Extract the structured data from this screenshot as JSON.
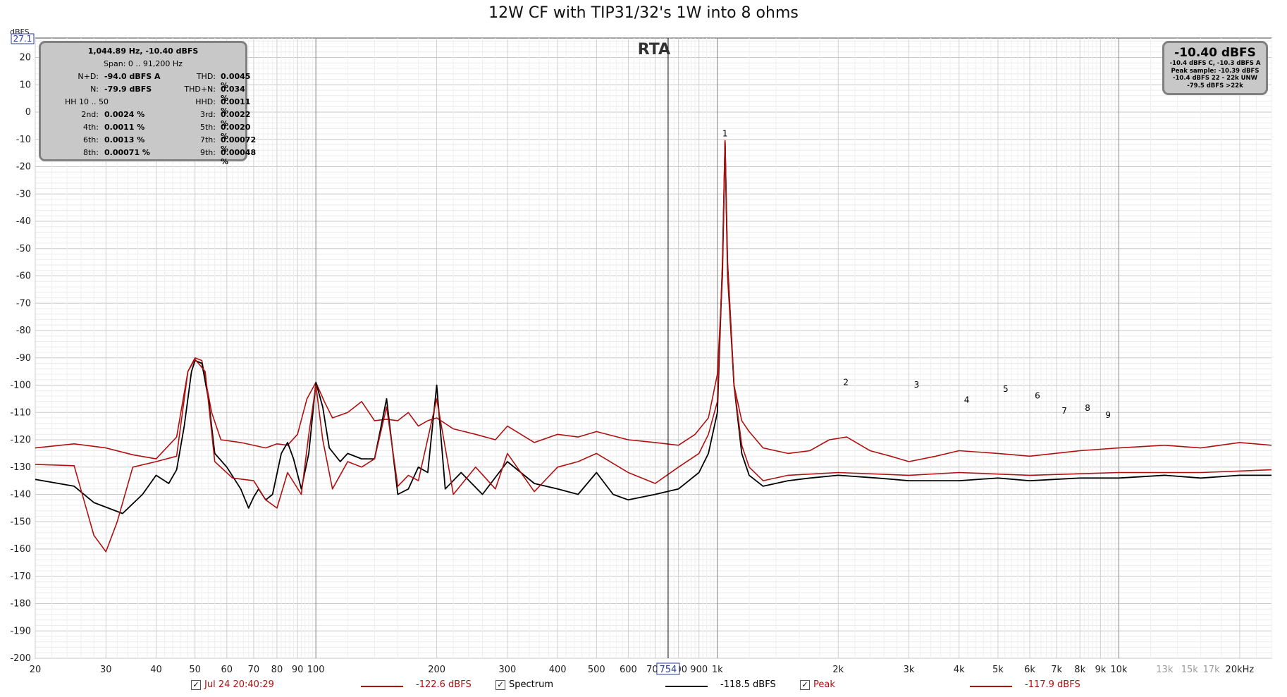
{
  "title": "12W CF with TIP31/32's 1W into 8 ohms",
  "colors": {
    "series1": "#b01010",
    "series2": "#000000",
    "series3": "#b01010",
    "grid": "#d4d4d4",
    "panel": "#c8c8c8"
  },
  "chart_data": {
    "type": "line",
    "title": "12W CF with TIP31/32's 1W into 8 ohms",
    "ylabel": "dBFS",
    "xlabel": "",
    "x_scale": "log",
    "xlim": [
      20,
      24000
    ],
    "ylim": [
      -200,
      27.1
    ],
    "grid": true,
    "overlay_label": "RTA",
    "y_top_readout": "27.1",
    "cursor_readout": "754",
    "y_ticks": [
      "20",
      "10",
      "0",
      "-10",
      "-20",
      "-30",
      "-40",
      "-50",
      "-60",
      "-70",
      "-80",
      "-90",
      "-100",
      "-110",
      "-120",
      "-130",
      "-140",
      "-150",
      "-160",
      "-170",
      "-180",
      "-190",
      "-200"
    ],
    "x_ticks": [
      {
        "v": 20,
        "t": "20"
      },
      {
        "v": 30,
        "t": "30"
      },
      {
        "v": 40,
        "t": "40"
      },
      {
        "v": 50,
        "t": "50"
      },
      {
        "v": 60,
        "t": "60"
      },
      {
        "v": 70,
        "t": "70"
      },
      {
        "v": 80,
        "t": "80"
      },
      {
        "v": 90,
        "t": "90"
      },
      {
        "v": 100,
        "t": "100"
      },
      {
        "v": 200,
        "t": "200"
      },
      {
        "v": 300,
        "t": "300"
      },
      {
        "v": 400,
        "t": "400"
      },
      {
        "v": 500,
        "t": "500"
      },
      {
        "v": 600,
        "t": "600"
      },
      {
        "v": 700,
        "t": "700"
      },
      {
        "v": 800,
        "t": "800"
      },
      {
        "v": 900,
        "t": "900"
      },
      {
        "v": 1000,
        "t": "1k"
      },
      {
        "v": 2000,
        "t": "2k"
      },
      {
        "v": 3000,
        "t": "3k"
      },
      {
        "v": 4000,
        "t": "4k"
      },
      {
        "v": 5000,
        "t": "5k"
      },
      {
        "v": 6000,
        "t": "6k"
      },
      {
        "v": 7000,
        "t": "7k"
      },
      {
        "v": 8000,
        "t": "8k"
      },
      {
        "v": 9000,
        "t": "9k"
      },
      {
        "v": 10000,
        "t": "10k"
      },
      {
        "v": 13000,
        "t": "13k",
        "light": true
      },
      {
        "v": 15000,
        "t": "15k",
        "light": true
      },
      {
        "v": 17000,
        "t": "17k",
        "light": true
      },
      {
        "v": 20000,
        "t": "20kHz"
      }
    ],
    "harmonic_markers": [
      {
        "label": "1",
        "x": 1045,
        "y": -10.4
      },
      {
        "label": "2",
        "x": 2090,
        "y": -101.5
      },
      {
        "label": "3",
        "x": 3135,
        "y": -102.5
      },
      {
        "label": "4",
        "x": 4180,
        "y": -108
      },
      {
        "label": "5",
        "x": 5225,
        "y": -104
      },
      {
        "label": "6",
        "x": 6270,
        "y": -106.5
      },
      {
        "label": "7",
        "x": 7315,
        "y": -112
      },
      {
        "label": "8",
        "x": 8360,
        "y": -111
      },
      {
        "label": "9",
        "x": 9405,
        "y": -113.5
      }
    ],
    "series": [
      {
        "name": "Jul 24 20:40:29",
        "color": "#b01010",
        "points": [
          [
            20,
            -123
          ],
          [
            25,
            -121.5
          ],
          [
            30,
            -123
          ],
          [
            35,
            -125.5
          ],
          [
            40,
            -127
          ],
          [
            45,
            -119
          ],
          [
            48,
            -95
          ],
          [
            50,
            -90
          ],
          [
            52,
            -91
          ],
          [
            55,
            -110
          ],
          [
            58,
            -120
          ],
          [
            65,
            -121
          ],
          [
            75,
            -123
          ],
          [
            80,
            -121.5
          ],
          [
            85,
            -122
          ],
          [
            90,
            -118
          ],
          [
            95,
            -105
          ],
          [
            100,
            -99
          ],
          [
            105,
            -106
          ],
          [
            110,
            -112
          ],
          [
            120,
            -110
          ],
          [
            130,
            -106
          ],
          [
            140,
            -113
          ],
          [
            150,
            -112.5
          ],
          [
            160,
            -113
          ],
          [
            170,
            -110
          ],
          [
            180,
            -115
          ],
          [
            190,
            -113
          ],
          [
            200,
            -112
          ],
          [
            220,
            -116
          ],
          [
            250,
            -118
          ],
          [
            280,
            -120
          ],
          [
            300,
            -115
          ],
          [
            350,
            -121
          ],
          [
            400,
            -118
          ],
          [
            450,
            -119
          ],
          [
            500,
            -117
          ],
          [
            600,
            -120
          ],
          [
            700,
            -121
          ],
          [
            800,
            -122
          ],
          [
            880,
            -118
          ],
          [
            950,
            -112
          ],
          [
            1000,
            -96
          ],
          [
            1030,
            -60
          ],
          [
            1045,
            -10.4
          ],
          [
            1060,
            -60
          ],
          [
            1100,
            -100
          ],
          [
            1150,
            -113
          ],
          [
            1200,
            -117
          ],
          [
            1300,
            -123
          ],
          [
            1500,
            -125
          ],
          [
            1700,
            -124
          ],
          [
            1900,
            -120
          ],
          [
            2100,
            -119
          ],
          [
            2400,
            -124
          ],
          [
            2700,
            -126
          ],
          [
            3000,
            -128
          ],
          [
            3500,
            -126
          ],
          [
            4000,
            -124
          ],
          [
            5000,
            -125
          ],
          [
            6000,
            -126
          ],
          [
            8000,
            -124
          ],
          [
            10000,
            -123
          ],
          [
            13000,
            -122
          ],
          [
            16000,
            -123
          ],
          [
            20000,
            -121
          ],
          [
            24000,
            -122
          ]
        ]
      },
      {
        "name": "Spectrum",
        "color": "#000000",
        "points": [
          [
            20,
            -134.5
          ],
          [
            25,
            -137
          ],
          [
            28,
            -143
          ],
          [
            33,
            -147
          ],
          [
            37,
            -140
          ],
          [
            40,
            -133
          ],
          [
            43,
            -136
          ],
          [
            45,
            -131
          ],
          [
            47,
            -115
          ],
          [
            49,
            -95
          ],
          [
            50,
            -91
          ],
          [
            52,
            -92
          ],
          [
            54,
            -105
          ],
          [
            56,
            -125
          ],
          [
            60,
            -130
          ],
          [
            65,
            -138
          ],
          [
            68,
            -145
          ],
          [
            70,
            -141
          ],
          [
            72,
            -138
          ],
          [
            75,
            -142
          ],
          [
            78,
            -140
          ],
          [
            82,
            -125
          ],
          [
            85,
            -121
          ],
          [
            88,
            -127
          ],
          [
            92,
            -138
          ],
          [
            96,
            -125
          ],
          [
            100,
            -99
          ],
          [
            104,
            -108
          ],
          [
            108,
            -123
          ],
          [
            115,
            -128
          ],
          [
            120,
            -125
          ],
          [
            130,
            -127
          ],
          [
            140,
            -127
          ],
          [
            150,
            -105
          ],
          [
            160,
            -140
          ],
          [
            170,
            -138
          ],
          [
            180,
            -130
          ],
          [
            190,
            -132
          ],
          [
            200,
            -100
          ],
          [
            210,
            -138
          ],
          [
            230,
            -132
          ],
          [
            260,
            -140
          ],
          [
            300,
            -128
          ],
          [
            350,
            -136
          ],
          [
            400,
            -138
          ],
          [
            450,
            -140
          ],
          [
            500,
            -132
          ],
          [
            550,
            -140
          ],
          [
            600,
            -142
          ],
          [
            700,
            -140
          ],
          [
            800,
            -138
          ],
          [
            900,
            -132
          ],
          [
            950,
            -125
          ],
          [
            1000,
            -110
          ],
          [
            1030,
            -55
          ],
          [
            1045,
            -11
          ],
          [
            1060,
            -55
          ],
          [
            1100,
            -100
          ],
          [
            1150,
            -125
          ],
          [
            1200,
            -133
          ],
          [
            1300,
            -137
          ],
          [
            1500,
            -135
          ],
          [
            1700,
            -134
          ],
          [
            2000,
            -133
          ],
          [
            2500,
            -134
          ],
          [
            3000,
            -135
          ],
          [
            4000,
            -135
          ],
          [
            5000,
            -134
          ],
          [
            6000,
            -135
          ],
          [
            8000,
            -134
          ],
          [
            10000,
            -134
          ],
          [
            13000,
            -133
          ],
          [
            16000,
            -134
          ],
          [
            20000,
            -133
          ],
          [
            24000,
            -133
          ]
        ]
      },
      {
        "name": "Peak",
        "color": "#b01010",
        "points": [
          [
            20,
            -129
          ],
          [
            25,
            -129.5
          ],
          [
            28,
            -155
          ],
          [
            30,
            -161
          ],
          [
            32,
            -150
          ],
          [
            35,
            -130
          ],
          [
            40,
            -128
          ],
          [
            45,
            -126
          ],
          [
            48,
            -95
          ],
          [
            50,
            -90.5
          ],
          [
            53,
            -95
          ],
          [
            56,
            -128
          ],
          [
            62,
            -134
          ],
          [
            70,
            -135
          ],
          [
            75,
            -142
          ],
          [
            80,
            -145
          ],
          [
            85,
            -132
          ],
          [
            92,
            -140
          ],
          [
            96,
            -118
          ],
          [
            100,
            -100
          ],
          [
            104,
            -120
          ],
          [
            110,
            -138
          ],
          [
            120,
            -128
          ],
          [
            130,
            -130
          ],
          [
            140,
            -127
          ],
          [
            150,
            -108
          ],
          [
            160,
            -137
          ],
          [
            170,
            -133
          ],
          [
            180,
            -135
          ],
          [
            200,
            -105
          ],
          [
            220,
            -140
          ],
          [
            250,
            -130
          ],
          [
            280,
            -138
          ],
          [
            300,
            -125
          ],
          [
            350,
            -139
          ],
          [
            400,
            -130
          ],
          [
            450,
            -128
          ],
          [
            500,
            -125
          ],
          [
            600,
            -132
          ],
          [
            700,
            -136
          ],
          [
            800,
            -130
          ],
          [
            900,
            -125
          ],
          [
            950,
            -118
          ],
          [
            1000,
            -106
          ],
          [
            1030,
            -55
          ],
          [
            1045,
            -10.5
          ],
          [
            1060,
            -55
          ],
          [
            1100,
            -100
          ],
          [
            1150,
            -122
          ],
          [
            1200,
            -130
          ],
          [
            1300,
            -135
          ],
          [
            1500,
            -133
          ],
          [
            2000,
            -132
          ],
          [
            3000,
            -133
          ],
          [
            4000,
            -132
          ],
          [
            6000,
            -133
          ],
          [
            10000,
            -132
          ],
          [
            16000,
            -132
          ],
          [
            24000,
            -131
          ]
        ]
      }
    ]
  },
  "stats_panel": {
    "header1": "1,044.89 Hz, -10.40 dBFS",
    "header2": "Span: 0 .. 91,200 Hz",
    "rows": [
      {
        "l1": "N+D:",
        "v1": "-94.0 dBFS A",
        "l2": "THD:",
        "v2": "0.0045 %"
      },
      {
        "l1": "N:",
        "v1": "-79.9 dBFS",
        "l2": "THD+N:",
        "v2": "0.034 %"
      },
      {
        "l1": "",
        "v1": "",
        "l2": "HHD:",
        "v2": "0.0011 %",
        "l1full": "HH 10 .. 50"
      },
      {
        "l1": "2nd:",
        "v1": "0.0024 %",
        "l2": "3rd:",
        "v2": "0.0022 %"
      },
      {
        "l1": "4th:",
        "v1": "0.0011 %",
        "l2": "5th:",
        "v2": "0.0020 %"
      },
      {
        "l1": "6th:",
        "v1": "0.0013 %",
        "l2": "7th:",
        "v2": "0.00072 %"
      },
      {
        "l1": "8th:",
        "v1": "0.00071 %",
        "l2": "9th:",
        "v2": "0.00048 %"
      }
    ]
  },
  "level_panel": {
    "main": "-10.40 dBFS",
    "line1": "-10.4 dBFS C, -10.3 dBFS A",
    "line2": "Peak sample: -10.39 dBFS",
    "line3": "-10.4 dBFS 22 - 22k UNW",
    "line4": "-79.5 dBFS >22k"
  },
  "footer": {
    "item1_label": "Jul 24 20:40:29",
    "item1_value": "-122.6 dBFS",
    "item2_label": "Spectrum",
    "item2_value": "-118.5 dBFS",
    "item3_label": "Peak",
    "item3_value": "-117.9 dBFS",
    "check": "✓"
  }
}
